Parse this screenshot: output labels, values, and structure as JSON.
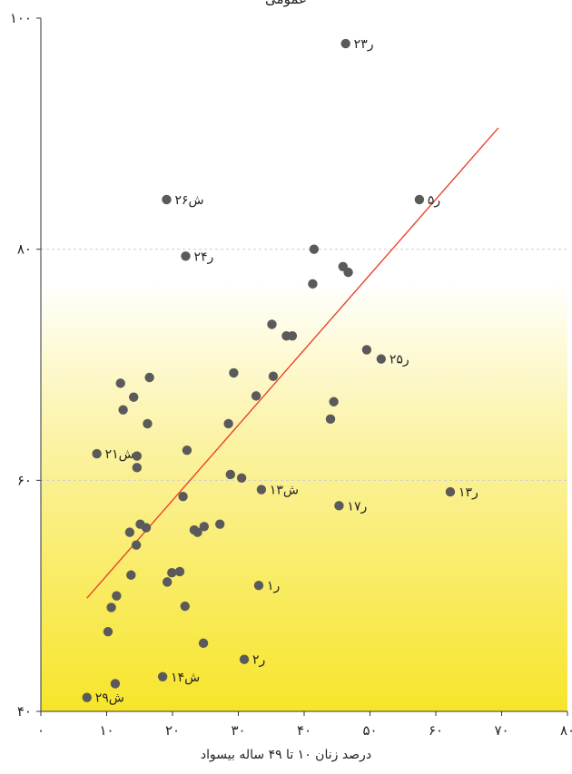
{
  "chart_data": {
    "type": "scatter",
    "title": "عمومی",
    "xlabel": "درصد زنان ۱۰ تا ۴۹ ساله بیسواد",
    "ylabel": "",
    "xlim": [
      0,
      80
    ],
    "ylim": [
      40,
      100
    ],
    "x_ticks": [
      0,
      10,
      20,
      30,
      40,
      50,
      60,
      70,
      80
    ],
    "x_tick_labels": [
      "۰",
      "۱۰",
      "۲۰",
      "۳۰",
      "۴۰",
      "۵۰",
      "۶۰",
      "۷۰",
      "۸۰"
    ],
    "y_ticks": [
      40,
      60,
      80,
      100
    ],
    "y_tick_labels": [
      "۴۰",
      "۶۰",
      "۸۰",
      "۱۰۰"
    ],
    "gridlines_y": [
      60,
      80
    ],
    "background": {
      "top": "#ffffff",
      "bottom": "#f7e52a"
    },
    "point_color": "#5a5a5a",
    "trend_color": "#e8452a",
    "trend_line": [
      [
        7,
        49.8
      ],
      [
        69.5,
        90.5
      ]
    ],
    "points": [
      {
        "x": 7,
        "y": 41.2,
        "label": "ش۲۹"
      },
      {
        "x": 8.5,
        "y": 62.3,
        "label": "ش۲۱"
      },
      {
        "x": 10.2,
        "y": 46.9,
        "label": ""
      },
      {
        "x": 10.7,
        "y": 49.0,
        "label": ""
      },
      {
        "x": 11.5,
        "y": 50.0,
        "label": ""
      },
      {
        "x": 11.3,
        "y": 42.4,
        "label": ""
      },
      {
        "x": 12.1,
        "y": 68.4,
        "label": ""
      },
      {
        "x": 12.5,
        "y": 66.1,
        "label": ""
      },
      {
        "x": 13.5,
        "y": 55.5,
        "label": ""
      },
      {
        "x": 13.7,
        "y": 51.8,
        "label": ""
      },
      {
        "x": 14.1,
        "y": 67.2,
        "label": ""
      },
      {
        "x": 14.5,
        "y": 54.4,
        "label": ""
      },
      {
        "x": 14.6,
        "y": 62.1,
        "label": ""
      },
      {
        "x": 14.6,
        "y": 61.1,
        "label": ""
      },
      {
        "x": 15.1,
        "y": 56.2,
        "label": ""
      },
      {
        "x": 16.0,
        "y": 55.9,
        "label": ""
      },
      {
        "x": 16.2,
        "y": 64.9,
        "label": ""
      },
      {
        "x": 16.5,
        "y": 68.9,
        "label": ""
      },
      {
        "x": 18.5,
        "y": 43.0,
        "label": "ش۱۴"
      },
      {
        "x": 19.1,
        "y": 84.3,
        "label": "ش۲۶"
      },
      {
        "x": 19.2,
        "y": 51.2,
        "label": ""
      },
      {
        "x": 19.9,
        "y": 52.0,
        "label": ""
      },
      {
        "x": 21.1,
        "y": 52.1,
        "label": ""
      },
      {
        "x": 21.6,
        "y": 58.6,
        "label": ""
      },
      {
        "x": 21.9,
        "y": 49.1,
        "label": ""
      },
      {
        "x": 22.0,
        "y": 79.4,
        "label": "ر۲۴"
      },
      {
        "x": 22.2,
        "y": 62.6,
        "label": ""
      },
      {
        "x": 23.3,
        "y": 55.7,
        "label": ""
      },
      {
        "x": 23.8,
        "y": 55.5,
        "label": ""
      },
      {
        "x": 24.7,
        "y": 45.9,
        "label": ""
      },
      {
        "x": 24.8,
        "y": 56.0,
        "label": ""
      },
      {
        "x": 27.2,
        "y": 56.2,
        "label": ""
      },
      {
        "x": 28.5,
        "y": 64.9,
        "label": ""
      },
      {
        "x": 28.8,
        "y": 60.5,
        "label": ""
      },
      {
        "x": 29.3,
        "y": 69.3,
        "label": ""
      },
      {
        "x": 30.5,
        "y": 60.2,
        "label": ""
      },
      {
        "x": 30.9,
        "y": 44.5,
        "label": "ر۲"
      },
      {
        "x": 32.7,
        "y": 67.3,
        "label": ""
      },
      {
        "x": 33.1,
        "y": 50.9,
        "label": "ر۱"
      },
      {
        "x": 33.5,
        "y": 59.2,
        "label": "ش۱۳"
      },
      {
        "x": 35.1,
        "y": 73.5,
        "label": ""
      },
      {
        "x": 35.3,
        "y": 69.0,
        "label": ""
      },
      {
        "x": 37.3,
        "y": 72.5,
        "label": ""
      },
      {
        "x": 38.2,
        "y": 72.5,
        "label": ""
      },
      {
        "x": 41.3,
        "y": 77.0,
        "label": ""
      },
      {
        "x": 41.5,
        "y": 80.0,
        "label": ""
      },
      {
        "x": 44.0,
        "y": 65.3,
        "label": ""
      },
      {
        "x": 44.5,
        "y": 66.8,
        "label": ""
      },
      {
        "x": 45.3,
        "y": 57.8,
        "label": "ر۱۷"
      },
      {
        "x": 45.9,
        "y": 78.5,
        "label": ""
      },
      {
        "x": 46.3,
        "y": 97.8,
        "label": "ر۲۳"
      },
      {
        "x": 46.7,
        "y": 78.0,
        "label": ""
      },
      {
        "x": 49.5,
        "y": 71.3,
        "label": ""
      },
      {
        "x": 51.7,
        "y": 70.5,
        "label": "ر۲۵"
      },
      {
        "x": 57.5,
        "y": 84.3,
        "label": "ر۵"
      },
      {
        "x": 62.2,
        "y": 59.0,
        "label": "ر۱۳"
      }
    ]
  }
}
